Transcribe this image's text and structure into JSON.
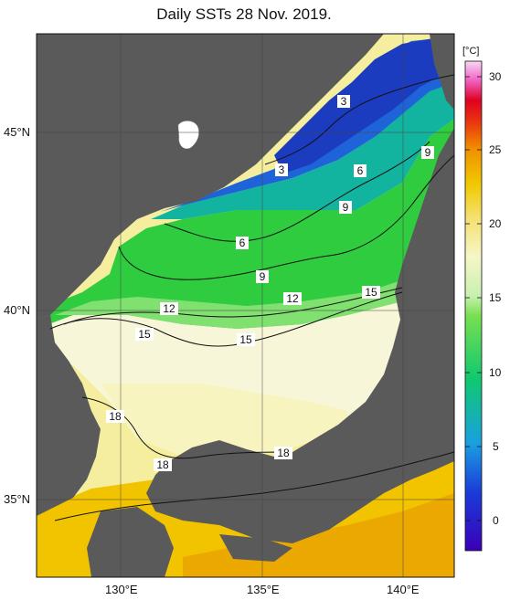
{
  "title": "Daily SSTs 28 Nov. 2019.",
  "colorbar": {
    "unit": "[°C]",
    "ticks": [
      "30",
      "25",
      "20",
      "15",
      "10",
      "5",
      "0"
    ],
    "range": [
      -2,
      32
    ]
  },
  "axes": {
    "lon_labels": [
      "130°E",
      "135°E",
      "140°E"
    ],
    "lat_labels": [
      "45°N",
      "40°N",
      "35°N"
    ]
  },
  "contour_labels": [
    "3",
    "3",
    "6",
    "6",
    "9",
    "9",
    "9",
    "12",
    "12",
    "15",
    "15",
    "15",
    "18",
    "18",
    "18"
  ],
  "colors": {
    "land": "#5a5a5a",
    "cold": "#1e3cc8",
    "mid": "#28c850",
    "warm": "#f0e89a",
    "hot": "#e8a000"
  }
}
